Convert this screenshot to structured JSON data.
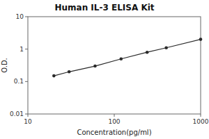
{
  "chart_data": {
    "type": "line",
    "title": "Human IL-3 ELISA Kit",
    "xlabel": "Concentration(pg/ml)",
    "ylabel": "O.D.",
    "x": [
      20,
      30,
      60,
      120,
      240,
      400,
      1000
    ],
    "values": [
      0.15,
      0.2,
      0.3,
      0.5,
      0.8,
      1.1,
      2.0
    ],
    "xlim": [
      10,
      1000
    ],
    "ylim": [
      0.01,
      10
    ],
    "xticks": [
      10,
      100,
      1000
    ],
    "yticks": [
      0.01,
      0.1,
      1,
      10
    ],
    "log": true,
    "grid": false,
    "color": "#2a2a2a",
    "marker": "circle"
  }
}
